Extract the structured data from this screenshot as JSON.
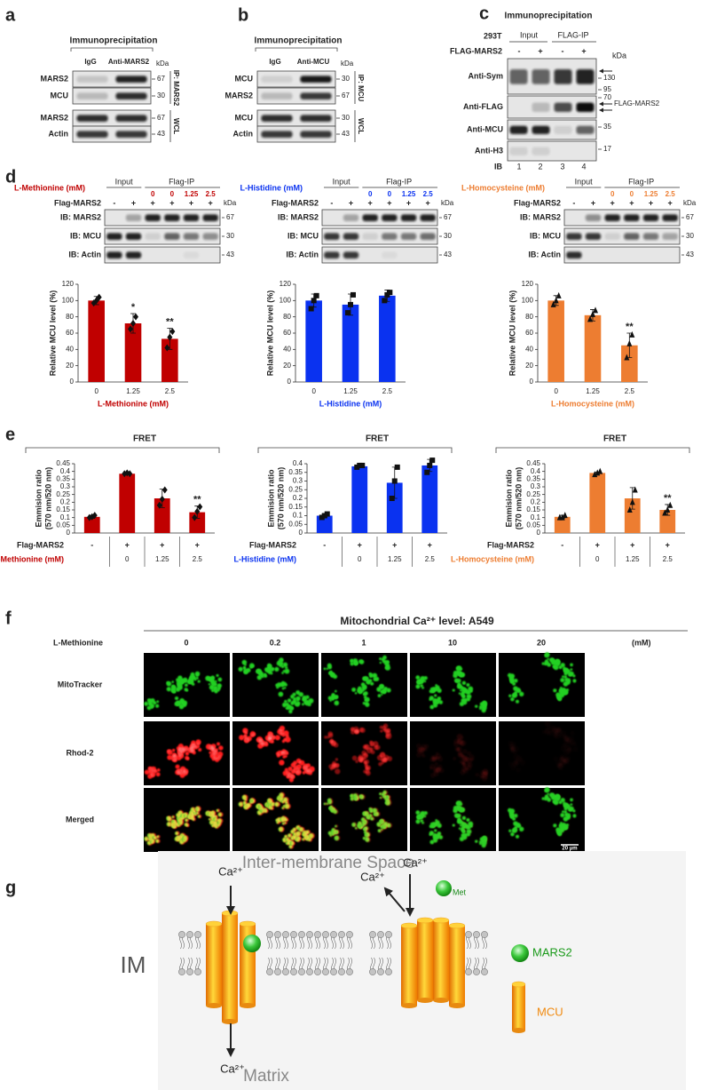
{
  "panels": {
    "a": {
      "letter": "a",
      "header": "Immunoprecipitation",
      "lanes": [
        "IgG",
        "Anti-MARS2"
      ],
      "kda": "kDa",
      "rows": [
        "MARS2",
        "MCU",
        "MARS2",
        "Actin"
      ],
      "markers": [
        "67",
        "30",
        "67",
        "43"
      ],
      "side": [
        "IP: MARS2",
        "WCL"
      ]
    },
    "b": {
      "letter": "b",
      "header": "Immunoprecipitation",
      "lanes": [
        "IgG",
        "Anti-MCU"
      ],
      "kda": "kDa",
      "rows": [
        "MCU",
        "MARS2",
        "MCU",
        "Actin"
      ],
      "markers": [
        "30",
        "67",
        "30",
        "43"
      ],
      "side": [
        "IP: MCU",
        "WCL"
      ]
    },
    "c": {
      "letter": "c",
      "header": "Immunoprecipitation",
      "cell": "293T",
      "groups": [
        "Input",
        "FLAG-IP"
      ],
      "flag_label": "FLAG-MARS2",
      "flag_row": [
        "-",
        "+",
        "-",
        "+"
      ],
      "kda": "kDa",
      "rows": [
        "Anti-Sym",
        "Anti-FLAG",
        "Anti-MCU",
        "Anti-H3"
      ],
      "markers": [
        "130",
        "95",
        "70",
        "35",
        "17"
      ],
      "arrow_label": "FLAG-MARS2",
      "ib": "IB",
      "lane_numbers": [
        "1",
        "2",
        "3",
        "4"
      ]
    },
    "d": {
      "letter": "d",
      "blots": [
        {
          "treatment": "L-Methionine (mM)",
          "groups": [
            "Input",
            "Flag-IP"
          ],
          "doses": [
            "0",
            "0",
            "1.25",
            "2.5"
          ],
          "flag_label": "Flag-MARS2",
          "flag_row": [
            "-",
            "+",
            "+",
            "+",
            "+",
            "+"
          ],
          "kda": "kDa",
          "rows": [
            "IB: MARS2",
            "IB: MCU",
            "IB: Actin"
          ],
          "markers": [
            "67",
            "30",
            "43"
          ]
        },
        {
          "treatment": "L-Histidine (mM)",
          "groups": [
            "Input",
            "Flag-IP"
          ],
          "doses": [
            "0",
            "0",
            "1.25",
            "2.5"
          ],
          "flag_label": "Flag-MARS2",
          "flag_row": [
            "-",
            "+",
            "+",
            "+",
            "+",
            "+"
          ],
          "kda": "kDa",
          "rows": [
            "IB: MARS2",
            "IB: MCU",
            "IB: Actin"
          ],
          "markers": [
            "67",
            "30",
            "43"
          ]
        },
        {
          "treatment": "L-Homocysteine (mM)",
          "groups": [
            "Input",
            "Flag-IP"
          ],
          "doses": [
            "0",
            "0",
            "1.25",
            "2.5"
          ],
          "flag_label": "Flag-MARS2",
          "flag_row": [
            "-",
            "+",
            "+",
            "+",
            "+",
            "+"
          ],
          "kda": "kDa",
          "rows": [
            "IB: MARS2",
            "IB: MCU",
            "IB: Actin"
          ],
          "markers": [
            "67",
            "30",
            "43"
          ]
        }
      ]
    },
    "e": {
      "letter": "e"
    },
    "f": {
      "letter": "f",
      "title": "Mitochondrial Ca²⁺ level: A549",
      "treatment": "L-Methionine",
      "doses": [
        "0",
        "0.2",
        "1",
        "10",
        "20"
      ],
      "unit": "(mM)",
      "rows": [
        "MitoTracker",
        "Rhod-2",
        "Merged"
      ],
      "scale": "20 µm"
    },
    "g": {
      "letter": "g",
      "top": "Inter-membrane Space",
      "bottom": "Matrix",
      "im": "IM",
      "ions": [
        "Ca²⁺",
        "Ca²⁺",
        "Ca²⁺",
        "Ca²⁺"
      ],
      "met": "Met",
      "legend": [
        "MARS2",
        "MCU"
      ]
    }
  },
  "chart_data": [
    {
      "type": "bar",
      "y_label": "Relative MCU level (%)",
      "x_label": "L-Methionine (mM)",
      "categories": [
        "0",
        "1.25",
        "2.5"
      ],
      "values": [
        100,
        72,
        53
      ],
      "errors": [
        5,
        12,
        13
      ],
      "points": [
        [
          97,
          100,
          104
        ],
        [
          65,
          72,
          80
        ],
        [
          42,
          55,
          62
        ]
      ],
      "significance": [
        null,
        "*",
        "**"
      ],
      "color": "#c00000",
      "marker": "diamond",
      "ylim": [
        0,
        120
      ],
      "yticks": [
        0,
        20,
        40,
        60,
        80,
        100,
        120
      ]
    },
    {
      "type": "bar",
      "y_label": "Relative MCU level (%)",
      "x_label": "L-Histidine (mM)",
      "categories": [
        "0",
        "1.25",
        "2.5"
      ],
      "values": [
        100,
        95,
        106
      ],
      "errors": [
        8,
        13,
        7
      ],
      "points": [
        [
          90,
          100,
          106
        ],
        [
          85,
          95,
          107
        ],
        [
          100,
          107,
          110
        ]
      ],
      "significance": [
        null,
        null,
        null
      ],
      "color": "#0a32f0",
      "marker": "square",
      "ylim": [
        0,
        120
      ],
      "yticks": [
        0,
        20,
        40,
        60,
        80,
        100,
        120
      ]
    },
    {
      "type": "bar",
      "y_label": "Relative MCU level (%)",
      "x_label": "L-Homocysteine (mM)",
      "categories": [
        "0",
        "1.25",
        "2.5"
      ],
      "values": [
        100,
        82,
        45
      ],
      "errors": [
        6,
        7,
        15
      ],
      "points": [
        [
          95,
          100,
          106
        ],
        [
          77,
          83,
          88
        ],
        [
          30,
          47,
          58
        ]
      ],
      "significance": [
        null,
        null,
        "**"
      ],
      "color": "#ed7d31",
      "marker": "triangle",
      "ylim": [
        0,
        120
      ],
      "yticks": [
        0,
        20,
        40,
        60,
        80,
        100,
        120
      ]
    },
    {
      "type": "bar",
      "title": "FRET",
      "y_label": [
        "Emmision ratio",
        "(570 nm/520 nm)"
      ],
      "flag_label": "Flag-MARS2",
      "flag_row": [
        "-",
        "+",
        "+",
        "+"
      ],
      "x_label": "L-Methionine (mM)",
      "categories": [
        null,
        "0",
        "1.25",
        "2.5"
      ],
      "values": [
        0.105,
        0.385,
        0.225,
        0.135
      ],
      "errors": [
        0.01,
        0.005,
        0.06,
        0.04
      ],
      "points": [
        [
          0.1,
          0.105,
          0.115
        ],
        [
          0.385,
          0.39,
          0.385
        ],
        [
          0.18,
          0.22,
          0.28
        ],
        [
          0.1,
          0.14,
          0.17
        ]
      ],
      "significance": [
        null,
        null,
        null,
        "**"
      ],
      "color": "#c00000",
      "marker": "diamond",
      "ylim": [
        0,
        0.45
      ],
      "yticks": [
        0,
        0.05,
        0.1,
        0.15,
        0.2,
        0.25,
        0.3,
        0.35,
        0.4,
        0.45
      ]
    },
    {
      "type": "bar",
      "title": "FRET",
      "y_label": [
        "Emmision ratio",
        "(570 nm/520 nm)"
      ],
      "flag_label": "Flag-MARS2",
      "flag_row": [
        "-",
        "+",
        "+",
        "+"
      ],
      "x_label": "L-Histidine (mM)",
      "categories": [
        null,
        "0",
        "1.25",
        "2.5"
      ],
      "values": [
        0.1,
        0.385,
        0.29,
        0.39
      ],
      "errors": [
        0.01,
        0.005,
        0.09,
        0.035
      ],
      "points": [
        [
          0.09,
          0.1,
          0.11
        ],
        [
          0.38,
          0.39,
          0.39
        ],
        [
          0.2,
          0.3,
          0.38
        ],
        [
          0.35,
          0.39,
          0.42
        ]
      ],
      "significance": [
        null,
        null,
        null,
        null
      ],
      "color": "#0a32f0",
      "marker": "square",
      "ylim": [
        0,
        0.4
      ],
      "yticks": [
        0,
        0.05,
        0.1,
        0.15,
        0.2,
        0.25,
        0.3,
        0.35,
        0.4
      ]
    },
    {
      "type": "bar",
      "title": "FRET",
      "y_label": [
        "Emmision ratio",
        "(570 nm/520 nm)"
      ],
      "flag_label": "Flag-MARS2",
      "flag_row": [
        "-",
        "+",
        "+",
        "+"
      ],
      "x_label": "L-Homocysteine (mM)",
      "categories": [
        null,
        "0",
        "1.25",
        "2.5"
      ],
      "values": [
        0.105,
        0.39,
        0.225,
        0.15
      ],
      "errors": [
        0.01,
        0.005,
        0.07,
        0.035
      ],
      "points": [
        [
          0.1,
          0.1,
          0.115
        ],
        [
          0.38,
          0.39,
          0.4
        ],
        [
          0.15,
          0.2,
          0.28
        ],
        [
          0.13,
          0.15,
          0.18
        ]
      ],
      "significance": [
        null,
        null,
        null,
        "**"
      ],
      "color": "#ed7d31",
      "marker": "triangle",
      "ylim": [
        0,
        0.45
      ],
      "yticks": [
        0,
        0.05,
        0.1,
        0.15,
        0.2,
        0.25,
        0.3,
        0.35,
        0.4,
        0.45
      ]
    }
  ]
}
